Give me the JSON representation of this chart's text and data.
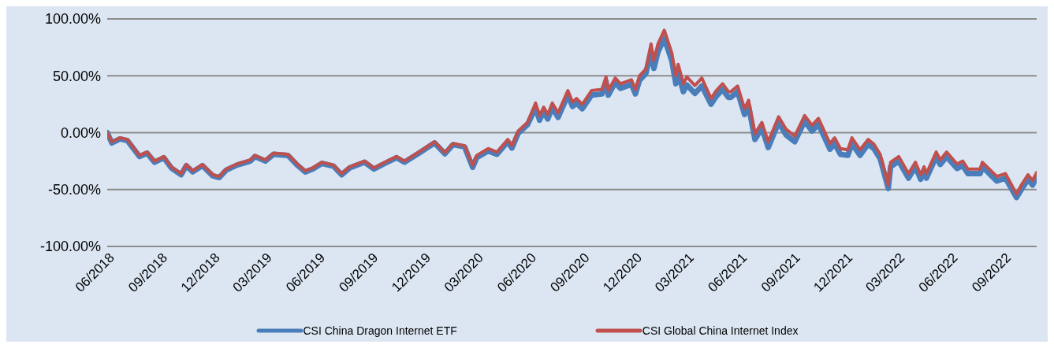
{
  "chart_data": {
    "type": "line",
    "x": [
      "2018-06-01",
      "2018-06-09",
      "2018-06-23",
      "2018-07-06",
      "2018-07-27",
      "2018-08-09",
      "2018-08-22",
      "2018-09-07",
      "2018-09-20",
      "2018-10-07",
      "2018-10-16",
      "2018-10-27",
      "2018-11-13",
      "2018-12-01",
      "2018-12-12",
      "2018-12-24",
      "2019-01-12",
      "2019-02-04",
      "2019-02-12",
      "2019-03-02",
      "2019-03-16",
      "2019-04-10",
      "2019-04-26",
      "2019-05-10",
      "2019-05-23",
      "2019-06-08",
      "2019-06-28",
      "2019-07-12",
      "2019-07-26",
      "2019-08-21",
      "2019-09-06",
      "2019-09-25",
      "2019-10-15",
      "2019-10-29",
      "2019-11-23",
      "2019-12-20",
      "2020-01-07",
      "2020-01-21",
      "2020-02-10",
      "2020-02-24",
      "2020-03-02",
      "2020-03-22",
      "2020-04-06",
      "2020-04-25",
      "2020-05-02",
      "2020-05-13",
      "2020-05-29",
      "2020-06-12",
      "2020-06-19",
      "2020-06-26",
      "2020-07-03",
      "2020-07-11",
      "2020-07-21",
      "2020-08-07",
      "2020-08-15",
      "2020-08-22",
      "2020-09-01",
      "2020-09-17",
      "2020-10-05",
      "2020-10-12",
      "2020-10-16",
      "2020-10-28",
      "2020-11-06",
      "2020-11-25",
      "2020-12-02",
      "2020-12-09",
      "2020-12-20",
      "2020-12-29",
      "2021-01-03",
      "2021-01-10",
      "2021-01-21",
      "2021-02-03",
      "2021-02-10",
      "2021-02-14",
      "2021-02-23",
      "2021-03-01",
      "2021-03-15",
      "2021-03-27",
      "2021-04-12",
      "2021-04-21",
      "2021-05-02",
      "2021-05-12",
      "2021-05-16",
      "2021-05-28",
      "2021-06-09",
      "2021-06-16",
      "2021-06-27",
      "2021-07-09",
      "2021-07-20",
      "2021-08-07",
      "2021-08-20",
      "2021-09-04",
      "2021-09-21",
      "2021-10-04",
      "2021-10-15",
      "2021-11-04",
      "2021-11-12",
      "2021-11-22",
      "2021-12-05",
      "2021-12-12",
      "2021-12-26",
      "2022-01-09",
      "2022-01-19",
      "2022-01-30",
      "2022-02-13",
      "2022-02-17",
      "2022-03-03",
      "2022-03-20",
      "2022-04-01",
      "2022-04-10",
      "2022-04-16",
      "2022-04-20",
      "2022-05-07",
      "2022-05-14",
      "2022-05-25",
      "2022-06-12",
      "2022-06-22",
      "2022-07-01",
      "2022-07-22",
      "2022-07-26",
      "2022-08-20",
      "2022-09-04",
      "2022-09-23",
      "2022-10-01",
      "2022-10-13",
      "2022-10-21",
      "2022-10-28"
    ],
    "series": [
      {
        "name": "CSI China Dragon Internet ETF",
        "color": "#4a7ebb",
        "values": [
          0,
          -9,
          -5.5,
          -7,
          -21,
          -18,
          -26,
          -22,
          -31,
          -37,
          -29,
          -34.5,
          -29,
          -38,
          -39.5,
          -33,
          -28.5,
          -25,
          -21,
          -25,
          -19,
          -20,
          -28.5,
          -34.5,
          -32,
          -27,
          -29.5,
          -37,
          -31,
          -26,
          -32,
          -27,
          -22,
          -26,
          -18,
          -9,
          -18.5,
          -10.5,
          -12.5,
          -30.5,
          -22,
          -16,
          -19,
          -8,
          -13.5,
          -0.5,
          7,
          22,
          11,
          18.5,
          12,
          22,
          13.5,
          33,
          23,
          26,
          21,
          33,
          34,
          45,
          33,
          44,
          39,
          42.5,
          34,
          46,
          52,
          71,
          56.5,
          71,
          83,
          63,
          43,
          53,
          36,
          42,
          34.5,
          41,
          25,
          32,
          38,
          31,
          31,
          36,
          16,
          23.5,
          -6,
          4,
          -13,
          9,
          -2,
          -8,
          10,
          1.5,
          7.5,
          -14.5,
          -9.5,
          -19,
          -20,
          -9.5,
          -20,
          -10,
          -14,
          -23,
          -49,
          -30,
          -25,
          -40,
          -30,
          -41,
          -34,
          -40,
          -21,
          -28,
          -21,
          -31.5,
          -29,
          -36,
          -36,
          -30,
          -42.5,
          -40,
          -57,
          -50.5,
          -41,
          -46,
          -39
        ]
      },
      {
        "name": "CSI Global China Internet Index",
        "color": "#c0504d",
        "values": [
          0,
          -8,
          -4.5,
          -6,
          -20,
          -17,
          -25,
          -21,
          -30,
          -36,
          -28,
          -33.5,
          -28,
          -37,
          -38.5,
          -32,
          -27.5,
          -24,
          -20,
          -24,
          -18,
          -19,
          -27.5,
          -33.5,
          -31,
          -26,
          -28.5,
          -36,
          -30,
          -25,
          -31,
          -26,
          -21,
          -25,
          -17,
          -8,
          -17.5,
          -9.5,
          -11.5,
          -28.5,
          -20,
          -14,
          -17,
          -6,
          -11.5,
          1.5,
          9,
          26,
          15,
          22.5,
          16,
          26,
          17.5,
          37,
          27,
          30,
          25,
          37,
          38,
          49,
          37,
          48,
          43,
          46.5,
          38,
          50,
          56,
          78,
          63.5,
          78,
          90,
          70,
          50,
          60,
          43,
          49,
          41.5,
          48,
          30,
          37,
          43,
          36,
          36,
          41,
          21,
          28.5,
          -1,
          9,
          -8,
          14,
          3,
          -3,
          15,
          6.5,
          12.5,
          -9.5,
          -4.5,
          -14,
          -15,
          -4.5,
          -15,
          -6,
          -10,
          -19,
          -46,
          -26,
          -21,
          -36,
          -26,
          -37,
          -30,
          -36,
          -17,
          -24,
          -17,
          -27.5,
          -25,
          -32,
          -32,
          -26,
          -38.5,
          -36,
          -54,
          -46.5,
          -37,
          -42,
          -35
        ]
      }
    ],
    "xlim": [
      "2018-06-01",
      "2022-10-28"
    ],
    "xticks": [
      {
        "value": "2018-06-01",
        "label": "06/2018"
      },
      {
        "value": "2018-09-01",
        "label": "09/2018"
      },
      {
        "value": "2018-12-01",
        "label": "12/2018"
      },
      {
        "value": "2019-03-01",
        "label": "03/2019"
      },
      {
        "value": "2019-06-01",
        "label": "06/2019"
      },
      {
        "value": "2019-09-01",
        "label": "09/2019"
      },
      {
        "value": "2019-12-01",
        "label": "12/2019"
      },
      {
        "value": "2020-03-01",
        "label": "03/2020"
      },
      {
        "value": "2020-06-01",
        "label": "06/2020"
      },
      {
        "value": "2020-09-01",
        "label": "09/2020"
      },
      {
        "value": "2020-12-01",
        "label": "12/2020"
      },
      {
        "value": "2021-03-01",
        "label": "03/2021"
      },
      {
        "value": "2021-06-01",
        "label": "06/2021"
      },
      {
        "value": "2021-09-01",
        "label": "09/2021"
      },
      {
        "value": "2021-12-01",
        "label": "12/2021"
      },
      {
        "value": "2022-03-01",
        "label": "03/2022"
      },
      {
        "value": "2022-06-01",
        "label": "06/2022"
      },
      {
        "value": "2022-09-01",
        "label": "09/2022"
      }
    ],
    "ylim": [
      -100,
      100
    ],
    "yticks": [
      {
        "value": -100,
        "label": "-100.00%"
      },
      {
        "value": -50,
        "label": "-50.00%"
      },
      {
        "value": 0,
        "label": "0.00%"
      },
      {
        "value": 50,
        "label": "50.00%"
      },
      {
        "value": 100,
        "label": "100.00%"
      }
    ],
    "grid": "y",
    "legend": "bottom",
    "marker": "none",
    "line_style": "solid"
  }
}
